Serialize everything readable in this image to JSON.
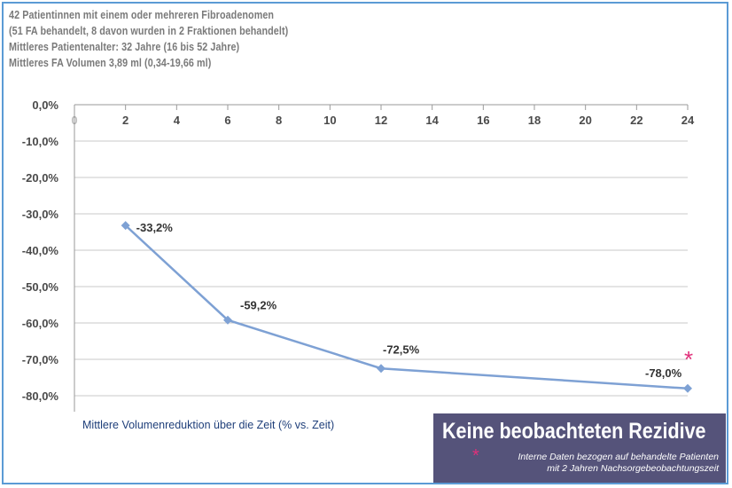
{
  "header": {
    "lines": [
      "42 Patientinnen mit einem oder mehreren Fibroadenomen",
      "(51 FA behandelt, 8 davon wurden in 2 Fraktionen behandelt)",
      "Mittleres Patientenalter: 32 Jahre (16 bis 52 Jahre)",
      "Mittleres FA Volumen 3,89 ml (0,34-19,66 ml)"
    ]
  },
  "chart_data": {
    "type": "line",
    "x": [
      2,
      6,
      12,
      24
    ],
    "series": [
      {
        "values": [
          -33.2,
          -59.2,
          -72.5,
          -78.0
        ],
        "labels": [
          "-33,2%",
          "-59,2%",
          "-72,5%",
          "-78,0%"
        ]
      }
    ],
    "xlim": [
      0,
      24
    ],
    "ylim": [
      -80,
      0
    ],
    "x_ticks": [
      "0",
      "2",
      "4",
      "6",
      "8",
      "10",
      "12",
      "14",
      "16",
      "18",
      "20",
      "22",
      "24"
    ],
    "y_ticks": [
      "0,0%",
      "-10,0%",
      "-20,0%",
      "-30,0%",
      "-40,0%",
      "-50,0%",
      "-60,0%",
      "-70,0%",
      "-80,0%"
    ],
    "grid": true,
    "xaxis_position": "top",
    "colors": {
      "line": "#7ea1d4",
      "grid": "#c8c8c8",
      "tick_text": "#4a4a4a"
    }
  },
  "caption": "Mittlere Volumenreduktion über die Zeit (% vs. Zeit)",
  "notice": {
    "title": "Keine beobachteten Rezidive",
    "star": "*",
    "lines": [
      "Interne Daten bezogen auf behandelte Patienten",
      "mit 2 Jahren Nachsorgebeobachtungszeit"
    ],
    "box_color": "#55537a",
    "star_color": "#e0307a"
  },
  "marker_star": "*"
}
